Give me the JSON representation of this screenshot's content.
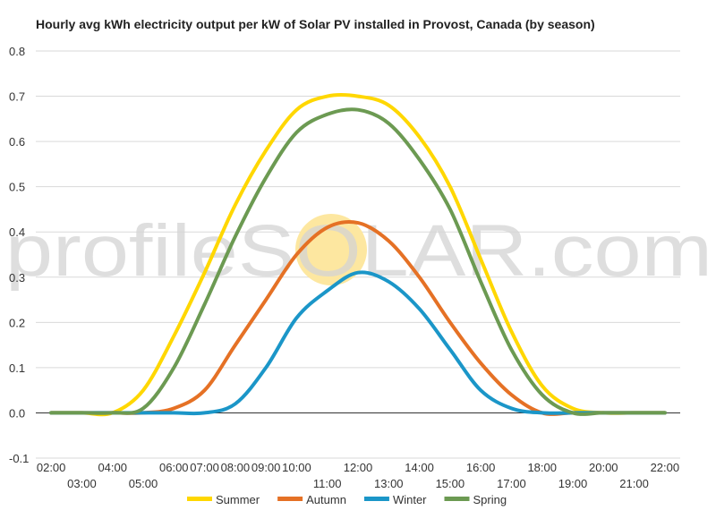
{
  "chart_data": {
    "type": "line",
    "title": "Hourly avg kWh electricity output per kW of Solar PV installed in Provost, Canada (by season)",
    "xlabel": "",
    "ylabel": "",
    "ylim": [
      -0.1,
      0.8
    ],
    "y_ticks": [
      "-0.1",
      "0.0",
      "0.1",
      "0.2",
      "0.3",
      "0.4",
      "0.5",
      "0.6",
      "0.7",
      "0.8"
    ],
    "x_ticks_upper": [
      "02:00",
      "04:00",
      "06:00",
      "07:00",
      "08:00",
      "09:00",
      "10:00",
      "12:00",
      "14:00",
      "16:00",
      "18:00",
      "20:00",
      "22:00"
    ],
    "x_ticks_lower": [
      "03:00",
      "05:00",
      "11:00",
      "13:00",
      "15:00",
      "17:00",
      "19:00",
      "21:00"
    ],
    "x": [
      2,
      3,
      4,
      5,
      6,
      7,
      8,
      9,
      10,
      11,
      12,
      13,
      14,
      15,
      16,
      17,
      18,
      19,
      20,
      21,
      22
    ],
    "grid": "horizontal",
    "legend_position": "bottom",
    "series": [
      {
        "name": "Summer",
        "color": "#ffd700",
        "values": [
          0.0,
          0.0,
          0.0,
          0.05,
          0.17,
          0.31,
          0.46,
          0.58,
          0.67,
          0.7,
          0.7,
          0.68,
          0.61,
          0.5,
          0.34,
          0.18,
          0.06,
          0.01,
          0.0,
          0.0,
          0.0
        ]
      },
      {
        "name": "Autumn",
        "color": "#e57125",
        "values": [
          0.0,
          0.0,
          0.0,
          0.0,
          0.01,
          0.05,
          0.15,
          0.25,
          0.35,
          0.41,
          0.42,
          0.38,
          0.3,
          0.2,
          0.11,
          0.04,
          0.0,
          0.0,
          0.0,
          0.0,
          0.0
        ]
      },
      {
        "name": "Winter",
        "color": "#1b96c8",
        "values": [
          0.0,
          0.0,
          0.0,
          0.0,
          0.0,
          0.0,
          0.02,
          0.1,
          0.21,
          0.27,
          0.31,
          0.29,
          0.23,
          0.14,
          0.05,
          0.01,
          0.0,
          0.0,
          0.0,
          0.0,
          0.0
        ]
      },
      {
        "name": "Spring",
        "color": "#6c9a52",
        "values": [
          0.0,
          0.0,
          0.0,
          0.01,
          0.1,
          0.24,
          0.39,
          0.52,
          0.62,
          0.66,
          0.67,
          0.64,
          0.56,
          0.45,
          0.29,
          0.14,
          0.04,
          0.0,
          0.0,
          0.0,
          0.0
        ]
      }
    ]
  },
  "watermark": {
    "text": "profileSOLAR.com",
    "sun_color": "#fde7a0"
  }
}
